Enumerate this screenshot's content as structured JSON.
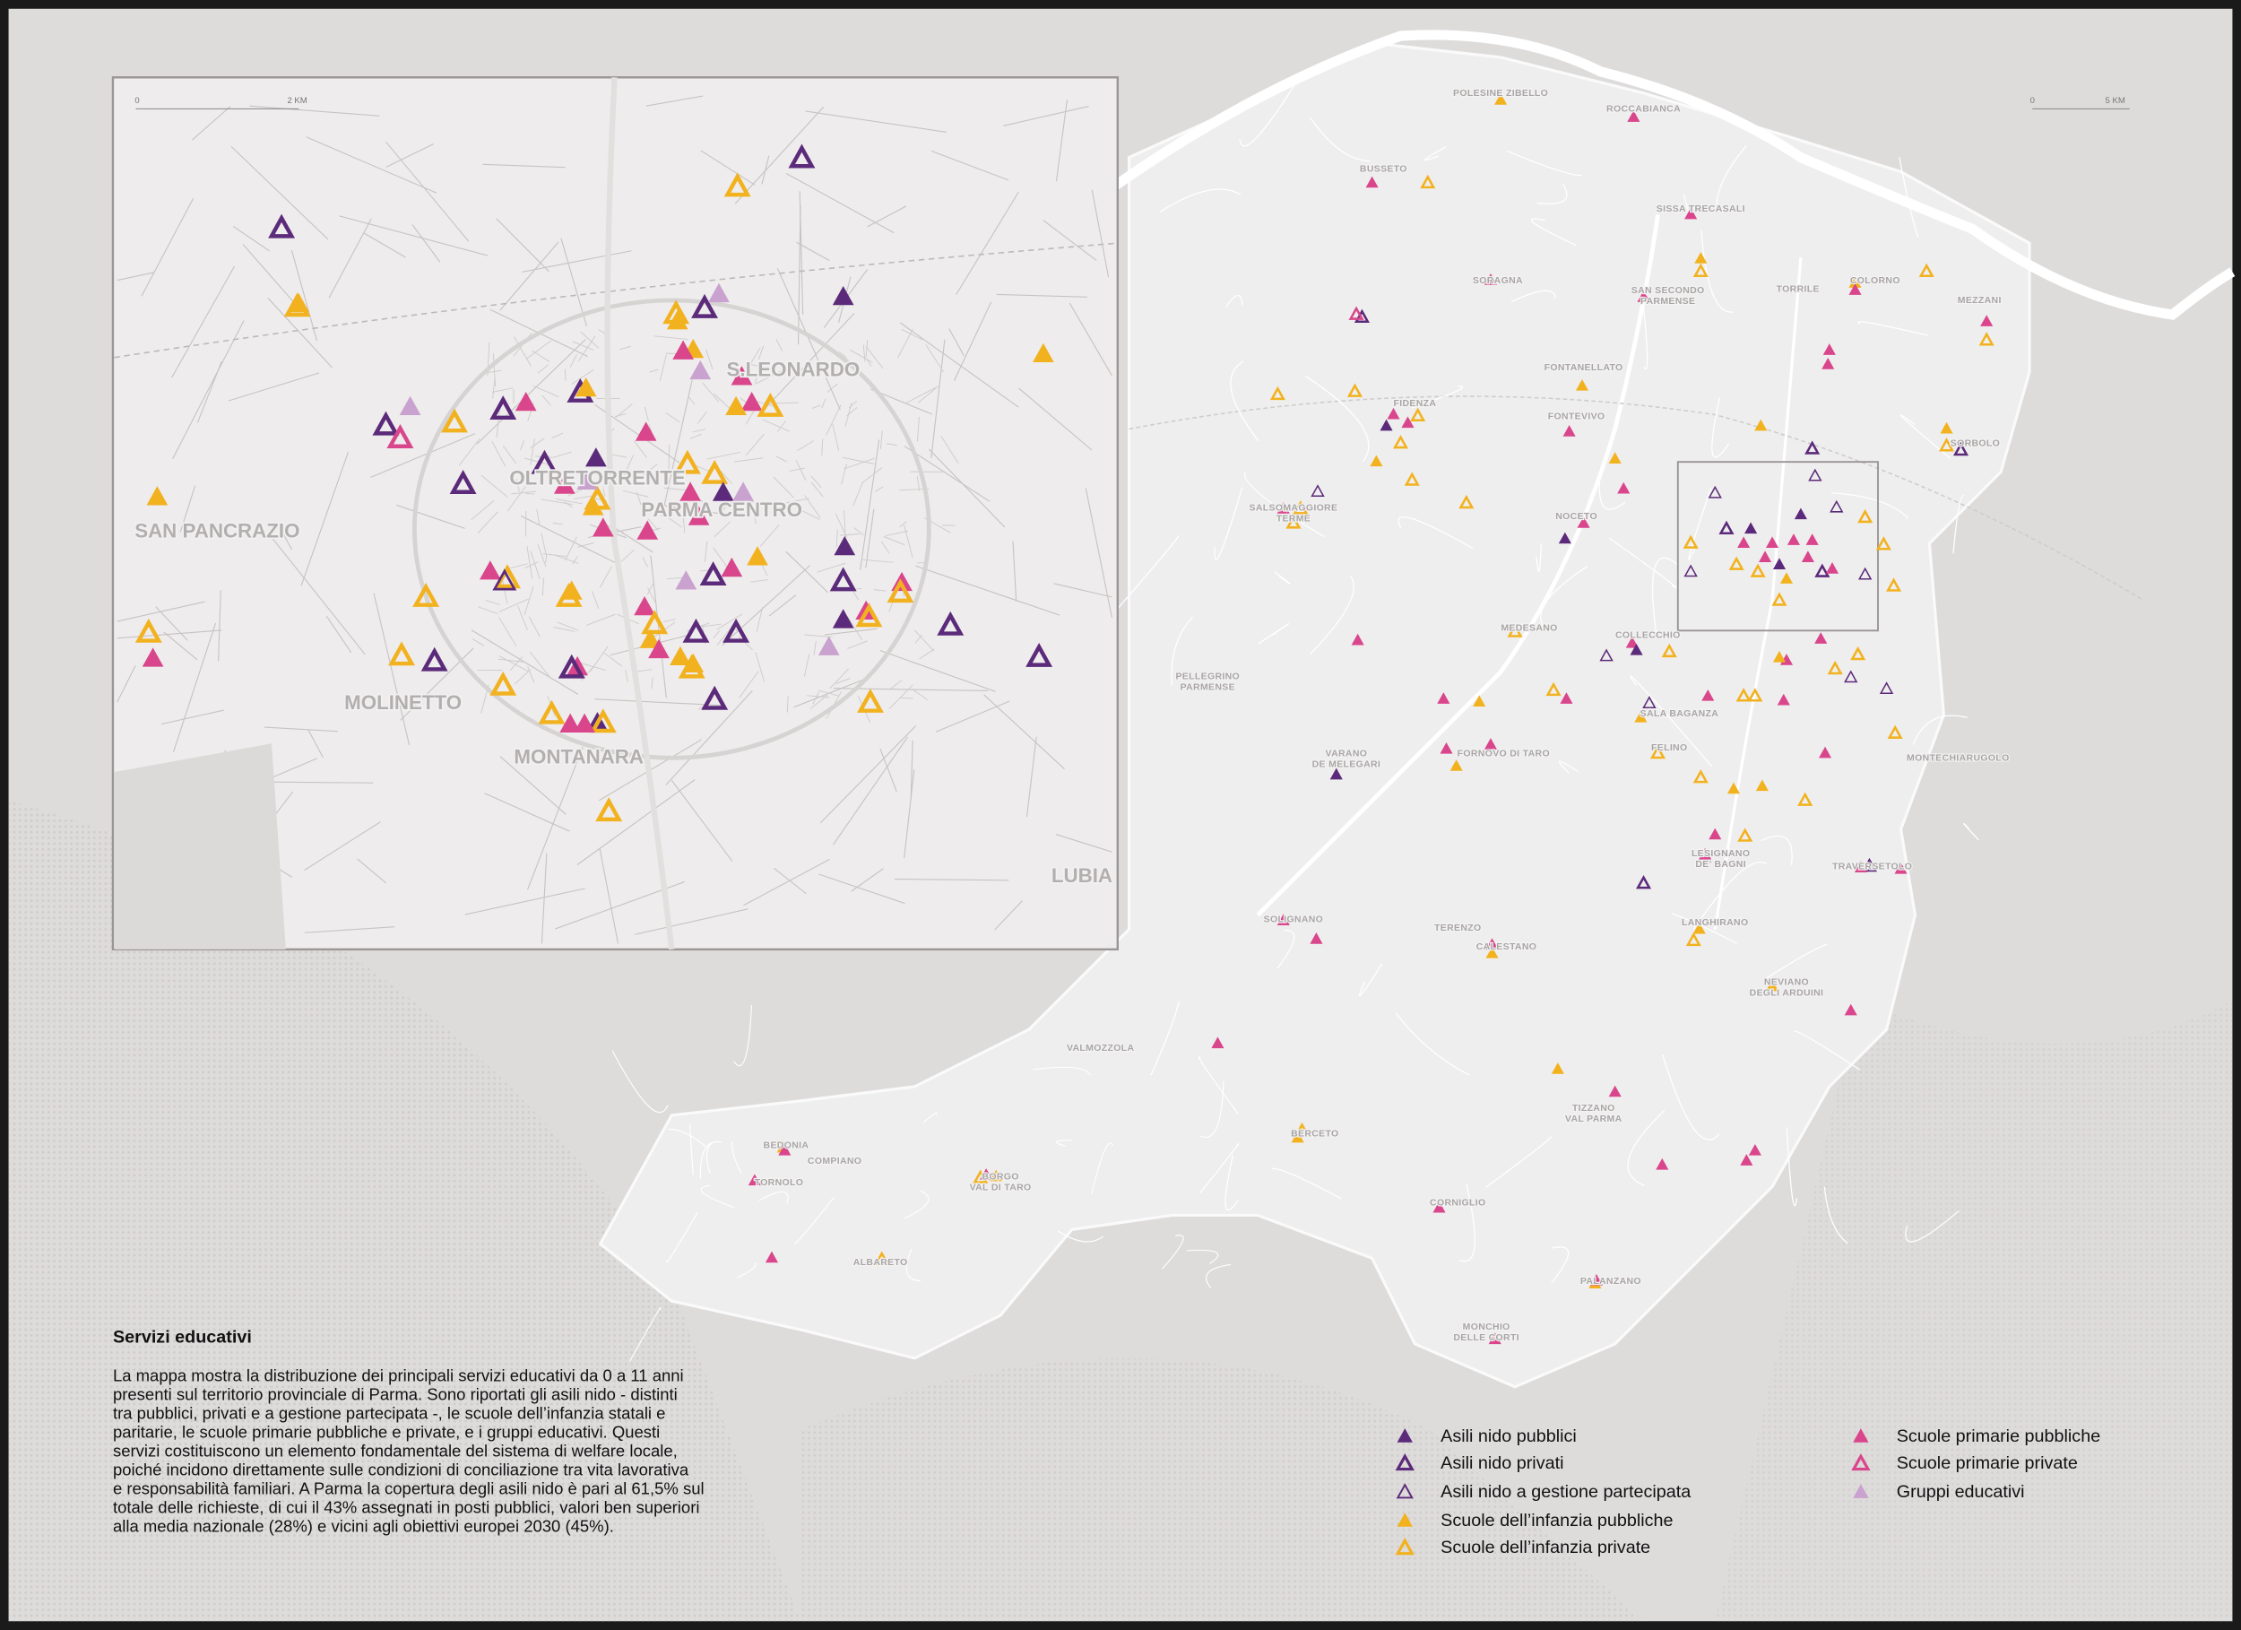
{
  "title": "Servizi educativi",
  "description": [
    "La mappa mostra la distribuzione dei principali servizi educativi da 0 a 11 anni",
    "presenti sul territorio provinciale di Parma. Sono riportati gli asili nido - distinti",
    "tra pubblici, privati e a gestione partecipata -, le scuole dell’infanzia statali e",
    "paritarie, le scuole primarie pubbliche e private, e i gruppi educativi. Questi",
    "servizi costituiscono un elemento fondamentale del sistema di welfare locale,",
    "poiché incidono direttamente sulle condizioni di conciliazione tra vita lavorativa",
    "e responsabilità familiari. A Parma la copertura degli asili nido è pari al 61,5% sul",
    "totale delle richieste, di cui il 43% assegnati in posti pubblici, valori ben superiori",
    "alla media nazionale (28%) e vicini agli obiettivi europei 2030 (45%)."
  ],
  "scale_bars": {
    "inset": [
      "0",
      "2 KM"
    ],
    "main": [
      "0",
      "5 KM"
    ]
  },
  "inset_labels": [
    "S.LEONARDO",
    "SAN PANCRAZIO",
    "OLTRETORRENTE",
    "PARMA CENTRO",
    "MOLINETTO",
    "MONTANARA",
    "LUBIA"
  ],
  "place_labels": [
    [
      "POLESINE ZIBELLO"
    ],
    [
      "ROCCABIANCA"
    ],
    [
      "BUSSETO"
    ],
    [
      "SISSA TRECASALI"
    ],
    [
      "SORAGNA"
    ],
    [
      "SAN SECONDO",
      "PARMENSE"
    ],
    [
      "TORRILE"
    ],
    [
      "COLORNO"
    ],
    [
      "MEZZANI"
    ],
    [
      "FONTANELLATO"
    ],
    [
      "FIDENZA"
    ],
    [
      "FONTEVIVO"
    ],
    [
      "SORBOLO"
    ],
    [
      "SALSOMAGGIORE",
      "TERME"
    ],
    [
      "NOCETO"
    ],
    [
      "MEDESANO"
    ],
    [
      "COLLECCHIO"
    ],
    [
      "PELLEGRINO",
      "PARMENSE"
    ],
    [
      "SALA BAGANZA"
    ],
    [
      "VARANO",
      "DE MELEGARI"
    ],
    [
      "FORNOVO DI TARO"
    ],
    [
      "FELINO"
    ],
    [
      "MONTECHIARUGOLO"
    ],
    [
      "LESIGNANO",
      "DE’ BAGNI"
    ],
    [
      "TRAVERSETOLO"
    ],
    [
      "SOLIGNANO"
    ],
    [
      "TERENZO"
    ],
    [
      "CALESTANO"
    ],
    [
      "LANGHIRANO"
    ],
    [
      "NEVIANO",
      "DEGLI ARDUINI"
    ],
    [
      "VALMOZZOLA"
    ],
    [
      "TIZZANO",
      "VAL PARMA"
    ],
    [
      "BERCETO"
    ],
    [
      "BEDONIA"
    ],
    [
      "COMPIANO"
    ],
    [
      "TORNOLO"
    ],
    [
      "BORGO",
      "VAL DI TARO"
    ],
    [
      "CORNIGLIO"
    ],
    [
      "ALBARETO"
    ],
    [
      "PALANZANO"
    ],
    [
      "MONCHIO",
      "DELLE CORTI"
    ]
  ],
  "legend": [
    {
      "label": "Asili nido pubblici",
      "color": "#5b2a7a",
      "style": "filled"
    },
    {
      "label": "Asili nido privati",
      "color": "#5b2a7a",
      "style": "outline"
    },
    {
      "label": "Asili nido a gestione partecipata",
      "color": "#5b2a7a",
      "style": "thin"
    },
    {
      "label": "Scuole dell’infanzia pubbliche",
      "color": "#f2b21f",
      "style": "filled"
    },
    {
      "label": "Scuole dell’infanzia private",
      "color": "#f2b21f",
      "style": "outline"
    },
    {
      "label": "Scuole primarie pubbliche",
      "color": "#d9468c",
      "style": "filled"
    },
    {
      "label": "Scuole primarie private",
      "color": "#d9468c",
      "style": "outline"
    },
    {
      "label": "Gruppi educativi",
      "color": "#c9a2cf",
      "style": "filled"
    }
  ]
}
